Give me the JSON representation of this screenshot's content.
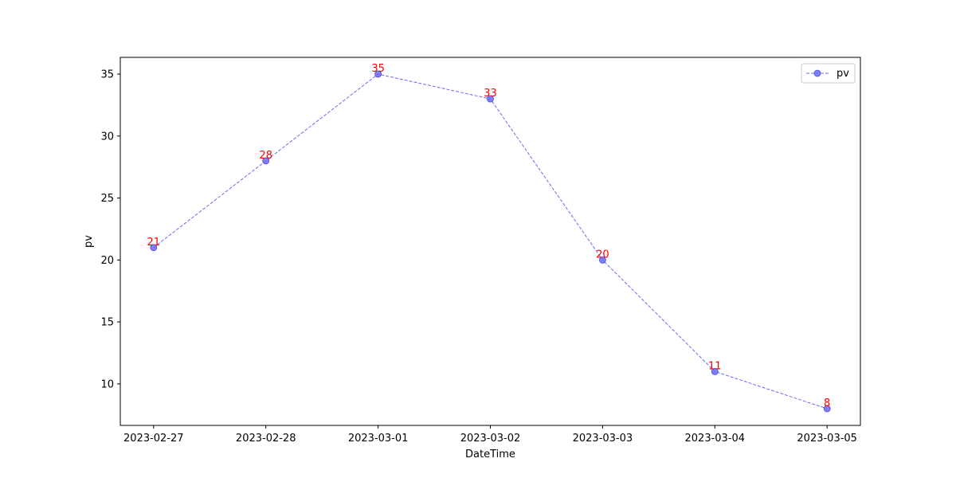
{
  "chart_data": {
    "type": "line",
    "x": [
      "2023-02-27",
      "2023-02-28",
      "2023-03-01",
      "2023-03-02",
      "2023-03-03",
      "2023-03-04",
      "2023-03-05"
    ],
    "series": [
      {
        "name": "pv",
        "values": [
          21,
          28,
          35,
          33,
          20,
          11,
          8
        ]
      }
    ],
    "xlabel": "DateTime",
    "ylabel": "pv",
    "ylim": [
      6.65,
      36.35
    ],
    "yticks": [
      10,
      15,
      20,
      25,
      30,
      35
    ],
    "grid": false,
    "legend_position": "top-right",
    "line_style": "dashed",
    "marker": "circle",
    "series_color": "#6b6bf5",
    "label_color": "#ff0000"
  }
}
